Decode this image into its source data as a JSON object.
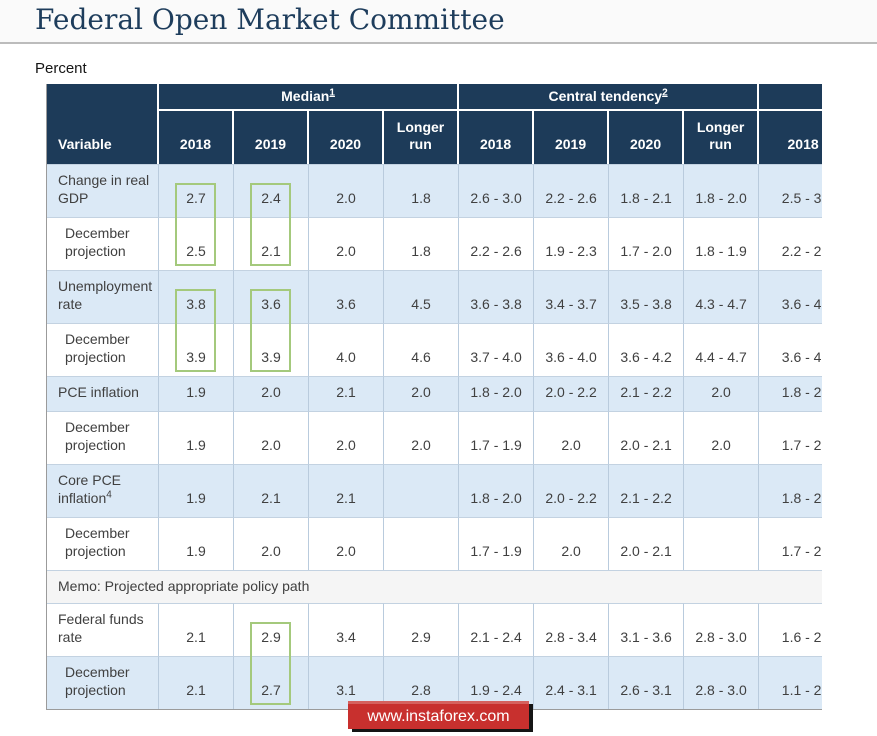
{
  "header": {
    "title": "Federal Open Market Committee"
  },
  "table": {
    "units_label": "Percent",
    "variable_header": "Variable",
    "groups": [
      {
        "label": "Median",
        "footnote": "1",
        "cols": [
          "2018",
          "2019",
          "2020",
          "Longer run"
        ]
      },
      {
        "label": "Central tendency",
        "footnote": "2",
        "cols": [
          "2018",
          "2019",
          "2020",
          "Longer run"
        ]
      },
      {
        "label": "",
        "footnote": "",
        "cols": [
          "2018"
        ]
      }
    ],
    "rows": [
      {
        "label": "Change in real GDP",
        "indent": false,
        "sup": "",
        "cells": [
          "2.7",
          "2.4",
          "2.0",
          "1.8",
          "2.6 - 3.0",
          "2.2 - 2.6",
          "1.8 - 2.1",
          "1.8 - 2.0",
          "2.5 - 3."
        ]
      },
      {
        "label": "December projection",
        "indent": true,
        "sup": "",
        "cells": [
          "2.5",
          "2.1",
          "2.0",
          "1.8",
          "2.2 - 2.6",
          "1.9 - 2.3",
          "1.7 - 2.0",
          "1.8 - 1.9",
          "2.2 - 2."
        ]
      },
      {
        "label": "Unemployment rate",
        "indent": false,
        "sup": "",
        "cells": [
          "3.8",
          "3.6",
          "3.6",
          "4.5",
          "3.6 - 3.8",
          "3.4 - 3.7",
          "3.5 - 3.8",
          "4.3 - 4.7",
          "3.6 - 4."
        ]
      },
      {
        "label": "December projection",
        "indent": true,
        "sup": "",
        "cells": [
          "3.9",
          "3.9",
          "4.0",
          "4.6",
          "3.7 - 4.0",
          "3.6 - 4.0",
          "3.6 - 4.2",
          "4.4 - 4.7",
          "3.6 - 4."
        ]
      },
      {
        "label": "PCE inflation",
        "indent": false,
        "sup": "",
        "cells": [
          "1.9",
          "2.0",
          "2.1",
          "2.0",
          "1.8 - 2.0",
          "2.0 - 2.2",
          "2.1 - 2.2",
          "2.0",
          "1.8 - 2."
        ]
      },
      {
        "label": "December projection",
        "indent": true,
        "sup": "",
        "cells": [
          "1.9",
          "2.0",
          "2.0",
          "2.0",
          "1.7 - 1.9",
          "2.0",
          "2.0 - 2.1",
          "2.0",
          "1.7 - 2."
        ]
      },
      {
        "label": "Core PCE inflation",
        "indent": false,
        "sup": "4",
        "cells": [
          "1.9",
          "2.1",
          "2.1",
          "",
          "1.8 - 2.0",
          "2.0 - 2.2",
          "2.1 - 2.2",
          "",
          "1.8 - 2."
        ]
      },
      {
        "label": "December projection",
        "indent": true,
        "sup": "",
        "cells": [
          "1.9",
          "2.0",
          "2.0",
          "",
          "1.7 - 1.9",
          "2.0",
          "2.0 - 2.1",
          "",
          "1.7 - 2."
        ]
      },
      {
        "type": "memo",
        "label": "Memo: Projected appropriate policy path"
      },
      {
        "label": "Federal funds rate",
        "indent": false,
        "sup": "",
        "cells": [
          "2.1",
          "2.9",
          "3.4",
          "2.9",
          "2.1 - 2.4",
          "2.8 - 3.4",
          "3.1 - 3.6",
          "2.8 - 3.0",
          "1.6 - 2."
        ]
      },
      {
        "label": "December projection",
        "indent": true,
        "sup": "",
        "cells": [
          "2.1",
          "2.7",
          "3.1",
          "2.8",
          "1.9 - 2.4",
          "2.4 - 3.1",
          "2.6 - 3.1",
          "2.8 - 3.0",
          "1.1 - 2."
        ]
      }
    ],
    "highlights": [
      {
        "col": 0,
        "rows": [
          0,
          1
        ]
      },
      {
        "col": 1,
        "rows": [
          0,
          1
        ]
      },
      {
        "col": 0,
        "rows": [
          2,
          3
        ]
      },
      {
        "col": 1,
        "rows": [
          2,
          3
        ]
      },
      {
        "col": 1,
        "rows": [
          9,
          10
        ]
      }
    ]
  },
  "watermark": {
    "text": "www.instaforex.com"
  },
  "colors": {
    "header_navy": "#1d3b59",
    "row_blue": "#dbe9f6",
    "highlight_green": "#a4c97c",
    "banner_red": "#c8302e",
    "title_navy": "#1e3d5c"
  }
}
